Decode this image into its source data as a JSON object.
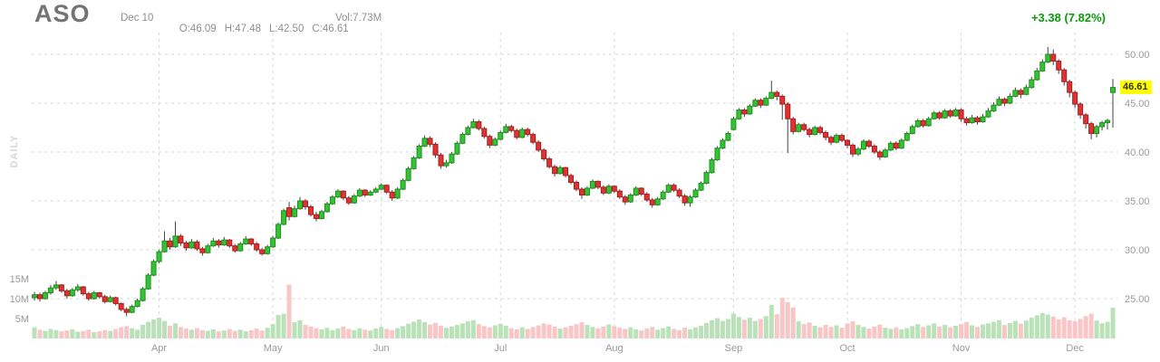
{
  "header": {
    "symbol": "ASO",
    "date": "Dec 10",
    "open": "O:46.09",
    "high": "H:47.48",
    "low": "L:42.50",
    "close": "C:46.61",
    "volume": "Vol:7.73M",
    "change": "+3.38 (7.82%)"
  },
  "colors": {
    "up_fill": "#35c235",
    "up_border": "#1e8e1e",
    "down_fill": "#e03232",
    "down_border": "#a81d1d",
    "wick": "#444444",
    "vol_up": "#b9e2b9",
    "vol_down": "#f8c6c6",
    "grid": "#d6d6d6",
    "axis_text": "#9a9a9a",
    "change_text": "#0d990d",
    "tag_bg": "#ffff00",
    "watermark": "#d8d8d8"
  },
  "chart_data": {
    "type": "candlestick",
    "timeframe": "DAILY",
    "title": "ASO daily candlestick chart with volume",
    "price_axis": {
      "ticks": [
        50,
        45,
        40,
        35,
        30,
        25
      ],
      "labels": [
        "50.00",
        "45.00",
        "40.00",
        "35.00",
        "30.00",
        "25.00"
      ],
      "range": [
        23.2,
        51.5
      ],
      "side": "right",
      "grid": "dashed"
    },
    "volume_axis": {
      "ticks": [
        15,
        10,
        5
      ],
      "labels": [
        "15M",
        "10M",
        "5M"
      ],
      "side": "left"
    },
    "months": [
      {
        "label": "Apr",
        "index": 23
      },
      {
        "label": "May",
        "index": 44
      },
      {
        "label": "Jun",
        "index": 64
      },
      {
        "label": "Jul",
        "index": 86
      },
      {
        "label": "Aug",
        "index": 107
      },
      {
        "label": "Sep",
        "index": 129
      },
      {
        "label": "Oct",
        "index": 150
      },
      {
        "label": "Nov",
        "index": 171
      },
      {
        "label": "Dec",
        "index": 192
      }
    ],
    "last_price": {
      "value": 46.61,
      "label": "46.61"
    },
    "candles_format": [
      "open",
      "high",
      "low",
      "close",
      "volume_millions"
    ],
    "candles": [
      [
        25.1,
        25.7,
        24.8,
        25.4,
        2.8
      ],
      [
        25.4,
        25.6,
        24.7,
        25.0,
        2.2
      ],
      [
        25.0,
        25.8,
        24.9,
        25.6,
        1.9
      ],
      [
        25.6,
        26.4,
        25.4,
        26.1,
        2.4
      ],
      [
        26.1,
        26.8,
        25.9,
        26.4,
        2.1
      ],
      [
        26.4,
        26.5,
        25.6,
        25.8,
        1.8
      ],
      [
        25.8,
        26.0,
        25.0,
        25.3,
        2.0
      ],
      [
        25.3,
        26.1,
        25.2,
        25.9,
        2.3
      ],
      [
        25.9,
        26.5,
        25.7,
        26.2,
        1.7
      ],
      [
        26.2,
        26.3,
        25.3,
        25.5,
        1.9
      ],
      [
        25.5,
        25.7,
        24.8,
        25.0,
        2.2
      ],
      [
        25.0,
        25.8,
        24.9,
        25.6,
        1.6
      ],
      [
        25.6,
        25.7,
        25.0,
        25.2,
        1.8
      ],
      [
        25.2,
        25.4,
        24.5,
        24.7,
        2.1
      ],
      [
        24.7,
        25.3,
        24.6,
        25.1,
        1.9
      ],
      [
        25.1,
        25.2,
        24.3,
        24.5,
        2.4
      ],
      [
        24.5,
        24.6,
        23.7,
        23.9,
        2.8
      ],
      [
        23.9,
        24.1,
        23.2,
        23.6,
        3.1
      ],
      [
        23.6,
        24.4,
        23.5,
        24.2,
        2.6
      ],
      [
        24.2,
        25.0,
        24.1,
        24.8,
        2.2
      ],
      [
        24.8,
        26.2,
        24.7,
        26.0,
        3.4
      ],
      [
        26.0,
        27.6,
        25.9,
        27.4,
        4.2
      ],
      [
        27.4,
        29.0,
        27.3,
        28.8,
        4.8
      ],
      [
        28.8,
        30.0,
        28.6,
        29.8,
        5.2
      ],
      [
        29.8,
        31.9,
        29.7,
        30.9,
        4.4
      ],
      [
        30.9,
        31.2,
        30.0,
        30.3,
        3.2
      ],
      [
        30.3,
        32.9,
        30.2,
        31.4,
        3.8
      ],
      [
        31.4,
        31.6,
        30.4,
        30.7,
        2.9
      ],
      [
        30.7,
        30.9,
        29.9,
        30.2,
        2.5
      ],
      [
        30.2,
        31.1,
        30.1,
        30.8,
        2.2
      ],
      [
        30.8,
        31.0,
        29.9,
        30.1,
        2.6
      ],
      [
        30.1,
        30.3,
        29.4,
        29.7,
        2.1
      ],
      [
        29.7,
        30.6,
        29.6,
        30.4,
        1.9
      ],
      [
        30.4,
        31.2,
        30.3,
        30.9,
        2.3
      ],
      [
        30.9,
        31.1,
        30.2,
        30.5,
        1.8
      ],
      [
        30.5,
        31.3,
        30.4,
        31.0,
        2.0
      ],
      [
        31.0,
        31.1,
        30.2,
        30.4,
        2.4
      ],
      [
        30.4,
        30.6,
        29.7,
        29.9,
        1.9
      ],
      [
        29.9,
        30.8,
        29.8,
        30.6,
        2.2
      ],
      [
        30.6,
        31.4,
        30.5,
        31.1,
        1.8
      ],
      [
        31.1,
        31.2,
        30.4,
        30.6,
        2.1
      ],
      [
        30.6,
        30.8,
        29.8,
        30.0,
        2.5
      ],
      [
        30.0,
        30.2,
        29.4,
        29.6,
        2.0
      ],
      [
        29.6,
        30.5,
        29.5,
        30.3,
        2.7
      ],
      [
        30.3,
        31.4,
        30.2,
        31.2,
        3.6
      ],
      [
        31.2,
        32.8,
        31.1,
        32.6,
        5.9
      ],
      [
        32.6,
        34.2,
        32.5,
        34.0,
        6.2
      ],
      [
        34.3,
        34.9,
        33.0,
        33.4,
        13.5
      ],
      [
        33.4,
        34.5,
        33.3,
        34.2,
        4.1
      ],
      [
        34.2,
        35.4,
        34.1,
        35.0,
        4.6
      ],
      [
        35.0,
        35.2,
        34.1,
        34.4,
        3.4
      ],
      [
        34.4,
        34.6,
        33.4,
        33.6,
        3.0
      ],
      [
        33.6,
        33.9,
        32.9,
        33.2,
        2.6
      ],
      [
        33.2,
        34.1,
        33.1,
        33.9,
        2.3
      ],
      [
        33.9,
        34.9,
        33.8,
        34.7,
        2.7
      ],
      [
        34.7,
        35.6,
        34.6,
        35.4,
        2.1
      ],
      [
        35.4,
        36.2,
        35.3,
        36.0,
        2.5
      ],
      [
        36.0,
        36.1,
        35.1,
        35.3,
        3.0
      ],
      [
        35.3,
        35.5,
        34.6,
        34.8,
        2.4
      ],
      [
        34.8,
        35.7,
        34.7,
        35.5,
        2.1
      ],
      [
        35.5,
        36.3,
        35.4,
        36.1,
        2.6
      ],
      [
        36.1,
        36.2,
        35.4,
        35.6,
        2.2
      ],
      [
        35.6,
        36.1,
        35.5,
        35.9,
        2.0
      ],
      [
        35.9,
        36.4,
        35.8,
        36.2,
        2.5
      ],
      [
        36.2,
        36.8,
        36.1,
        36.6,
        2.9
      ],
      [
        36.6,
        36.7,
        35.7,
        35.9,
        2.4
      ],
      [
        35.9,
        36.1,
        35.0,
        35.3,
        2.1
      ],
      [
        35.3,
        36.4,
        35.2,
        36.2,
        2.6
      ],
      [
        36.2,
        37.3,
        36.1,
        37.1,
        3.1
      ],
      [
        37.1,
        38.5,
        37.0,
        38.3,
        3.7
      ],
      [
        38.3,
        39.6,
        38.2,
        39.4,
        4.2
      ],
      [
        39.4,
        40.8,
        39.3,
        40.6,
        4.8
      ],
      [
        40.6,
        41.7,
        40.5,
        41.4,
        4.1
      ],
      [
        41.4,
        41.6,
        40.5,
        40.8,
        3.5
      ],
      [
        40.8,
        41.0,
        39.4,
        39.7,
        3.9
      ],
      [
        39.7,
        39.9,
        38.3,
        38.6,
        3.2
      ],
      [
        38.6,
        39.2,
        38.4,
        38.9,
        2.7
      ],
      [
        38.9,
        40.0,
        38.8,
        39.8,
        3.0
      ],
      [
        39.8,
        41.1,
        39.7,
        40.9,
        3.4
      ],
      [
        40.9,
        42.0,
        40.8,
        41.8,
        3.8
      ],
      [
        41.8,
        42.7,
        41.7,
        42.5,
        4.3
      ],
      [
        42.5,
        43.4,
        42.4,
        43.1,
        4.6
      ],
      [
        43.1,
        43.3,
        42.2,
        42.4,
        3.6
      ],
      [
        42.4,
        42.6,
        41.4,
        41.6,
        3.1
      ],
      [
        41.6,
        41.8,
        40.4,
        40.7,
        2.8
      ],
      [
        40.7,
        41.5,
        40.6,
        41.3,
        3.3
      ],
      [
        41.3,
        42.2,
        41.2,
        42.0,
        3.7
      ],
      [
        42.0,
        42.9,
        41.9,
        42.6,
        3.2
      ],
      [
        42.6,
        42.8,
        42.0,
        42.2,
        2.6
      ],
      [
        42.2,
        42.4,
        41.3,
        41.5,
        2.3
      ],
      [
        41.5,
        42.5,
        41.4,
        42.3,
        2.8
      ],
      [
        42.3,
        42.5,
        41.6,
        41.8,
        2.4
      ],
      [
        41.8,
        42.0,
        40.8,
        41.0,
        2.9
      ],
      [
        41.0,
        41.2,
        40.0,
        40.2,
        3.3
      ],
      [
        40.2,
        40.4,
        39.1,
        39.3,
        3.8
      ],
      [
        39.3,
        39.5,
        38.3,
        38.5,
        3.5
      ],
      [
        38.5,
        38.7,
        37.5,
        37.8,
        3.0
      ],
      [
        37.8,
        38.6,
        37.7,
        38.4,
        2.5
      ],
      [
        38.4,
        38.5,
        37.4,
        37.6,
        2.8
      ],
      [
        37.6,
        37.8,
        36.7,
        36.9,
        3.2
      ],
      [
        36.9,
        37.1,
        36.0,
        36.2,
        3.6
      ],
      [
        36.2,
        36.4,
        35.2,
        35.6,
        4.1
      ],
      [
        35.6,
        36.5,
        35.5,
        36.3,
        3.4
      ],
      [
        36.3,
        37.2,
        36.2,
        37.0,
        2.9
      ],
      [
        37.0,
        37.1,
        36.2,
        36.4,
        2.6
      ],
      [
        36.4,
        36.6,
        35.6,
        35.8,
        3.0
      ],
      [
        35.8,
        36.7,
        35.7,
        36.5,
        3.5
      ],
      [
        36.5,
        36.6,
        35.8,
        36.0,
        3.1
      ],
      [
        36.0,
        36.2,
        35.2,
        35.4,
        2.7
      ],
      [
        35.4,
        35.6,
        34.6,
        34.9,
        2.4
      ],
      [
        34.9,
        35.8,
        34.8,
        35.6,
        2.8
      ],
      [
        35.6,
        36.5,
        35.5,
        36.3,
        2.3
      ],
      [
        36.3,
        36.4,
        35.5,
        35.7,
        2.0
      ],
      [
        35.7,
        35.9,
        34.9,
        35.1,
        2.5
      ],
      [
        35.1,
        35.3,
        34.3,
        34.6,
        2.9
      ],
      [
        34.6,
        35.4,
        34.5,
        35.2,
        2.2
      ],
      [
        35.2,
        36.1,
        35.1,
        35.9,
        2.6
      ],
      [
        35.9,
        36.8,
        35.8,
        36.6,
        3.0
      ],
      [
        36.6,
        36.8,
        35.9,
        36.1,
        2.4
      ],
      [
        36.1,
        36.3,
        35.3,
        35.5,
        2.1
      ],
      [
        35.5,
        35.7,
        34.5,
        34.8,
        2.7
      ],
      [
        34.8,
        35.6,
        34.4,
        35.4,
        2.3
      ],
      [
        35.4,
        36.3,
        35.3,
        36.1,
        2.8
      ],
      [
        36.1,
        37.0,
        36.0,
        36.8,
        3.2
      ],
      [
        36.8,
        38.1,
        36.7,
        37.9,
        3.9
      ],
      [
        37.9,
        39.4,
        37.8,
        39.2,
        4.6
      ],
      [
        39.2,
        40.6,
        39.1,
        40.4,
        5.1
      ],
      [
        40.4,
        41.4,
        40.3,
        41.2,
        4.4
      ],
      [
        41.2,
        42.1,
        41.1,
        41.9,
        4.9
      ],
      [
        42.3,
        43.6,
        42.2,
        43.4,
        6.3
      ],
      [
        43.4,
        44.5,
        43.3,
        44.3,
        5.4
      ],
      [
        44.3,
        44.5,
        43.6,
        43.9,
        4.7
      ],
      [
        43.9,
        44.9,
        43.8,
        44.7,
        5.2
      ],
      [
        44.7,
        45.5,
        44.6,
        45.3,
        4.4
      ],
      [
        45.3,
        45.5,
        44.5,
        44.8,
        4.9
      ],
      [
        44.8,
        45.7,
        44.7,
        45.5,
        5.6
      ],
      [
        45.5,
        47.3,
        45.4,
        46.1,
        8.4
      ],
      [
        46.1,
        46.3,
        45.3,
        45.7,
        6.1
      ],
      [
        45.7,
        45.9,
        43.3,
        44.9,
        10.2
      ],
      [
        44.9,
        45.1,
        39.9,
        43.4,
        9.1
      ],
      [
        43.4,
        43.6,
        41.8,
        42.1,
        7.8
      ],
      [
        42.1,
        43.0,
        42.0,
        42.8,
        4.3
      ],
      [
        42.8,
        43.0,
        42.1,
        42.3,
        3.6
      ],
      [
        42.3,
        42.5,
        41.5,
        41.8,
        4.0
      ],
      [
        41.8,
        42.7,
        41.7,
        42.5,
        3.2
      ],
      [
        42.5,
        42.7,
        41.8,
        42.0,
        2.8
      ],
      [
        42.0,
        42.2,
        41.2,
        41.5,
        3.4
      ],
      [
        41.5,
        41.7,
        40.7,
        41.0,
        2.9
      ],
      [
        41.0,
        41.9,
        40.9,
        41.7,
        3.3
      ],
      [
        41.7,
        41.9,
        41.0,
        41.2,
        2.7
      ],
      [
        41.2,
        41.3,
        40.4,
        40.7,
        3.8
      ],
      [
        40.7,
        40.9,
        39.5,
        39.8,
        4.3
      ],
      [
        39.8,
        40.5,
        39.6,
        40.3,
        3.4
      ],
      [
        40.3,
        41.3,
        40.2,
        41.1,
        2.9
      ],
      [
        41.1,
        41.3,
        40.4,
        40.6,
        2.5
      ],
      [
        40.6,
        40.8,
        39.8,
        40.0,
        3.0
      ],
      [
        40.0,
        40.2,
        39.2,
        39.5,
        3.5
      ],
      [
        39.5,
        40.4,
        39.4,
        40.2,
        2.7
      ],
      [
        40.2,
        41.1,
        40.1,
        40.9,
        2.4
      ],
      [
        40.9,
        41.1,
        40.2,
        40.4,
        2.8
      ],
      [
        40.4,
        41.4,
        40.3,
        41.2,
        2.3
      ],
      [
        41.2,
        42.1,
        41.1,
        41.9,
        2.6
      ],
      [
        41.9,
        42.8,
        41.8,
        42.6,
        3.1
      ],
      [
        42.6,
        43.4,
        42.5,
        43.2,
        3.6
      ],
      [
        43.2,
        43.4,
        42.5,
        42.7,
        2.9
      ],
      [
        42.7,
        43.6,
        42.6,
        43.4,
        3.3
      ],
      [
        43.4,
        44.2,
        43.3,
        44.0,
        3.8
      ],
      [
        44.0,
        44.2,
        43.3,
        43.5,
        3.0
      ],
      [
        43.5,
        44.4,
        43.4,
        44.2,
        3.4
      ],
      [
        44.2,
        44.4,
        43.5,
        43.7,
        2.8
      ],
      [
        43.7,
        44.5,
        43.6,
        44.3,
        3.2
      ],
      [
        44.3,
        44.5,
        43.1,
        43.4,
        3.6
      ],
      [
        43.4,
        43.6,
        42.7,
        43.0,
        4.1
      ],
      [
        43.0,
        43.8,
        42.9,
        43.5,
        3.3
      ],
      [
        43.5,
        43.7,
        42.8,
        43.1,
        2.9
      ],
      [
        43.1,
        43.9,
        43.0,
        43.6,
        3.5
      ],
      [
        43.6,
        44.5,
        43.5,
        44.2,
        3.8
      ],
      [
        44.2,
        45.1,
        44.1,
        44.8,
        4.2
      ],
      [
        44.8,
        45.7,
        44.7,
        45.4,
        4.6
      ],
      [
        45.4,
        45.6,
        44.7,
        45.0,
        3.4
      ],
      [
        45.0,
        46.0,
        44.9,
        45.7,
        3.9
      ],
      [
        45.7,
        46.6,
        45.6,
        46.3,
        4.4
      ],
      [
        46.3,
        46.5,
        45.5,
        45.9,
        3.7
      ],
      [
        45.9,
        46.9,
        45.8,
        46.6,
        4.5
      ],
      [
        46.6,
        47.7,
        46.5,
        47.4,
        5.2
      ],
      [
        47.4,
        48.6,
        47.3,
        48.3,
        5.8
      ],
      [
        48.3,
        49.5,
        48.2,
        49.2,
        6.4
      ],
      [
        49.2,
        50.75,
        49.1,
        50.0,
        6.0
      ],
      [
        50.0,
        50.5,
        48.9,
        49.3,
        5.5
      ],
      [
        49.3,
        49.5,
        48.0,
        48.4,
        4.8
      ],
      [
        48.4,
        48.6,
        46.8,
        47.2,
        5.3
      ],
      [
        47.2,
        47.4,
        45.6,
        46.1,
        4.6
      ],
      [
        46.1,
        46.3,
        44.5,
        44.9,
        4.4
      ],
      [
        44.9,
        45.1,
        43.4,
        43.8,
        4.9
      ],
      [
        43.8,
        44.0,
        42.4,
        42.9,
        5.6
      ],
      [
        42.9,
        43.1,
        41.3,
        41.9,
        6.2
      ],
      [
        41.9,
        42.8,
        41.5,
        42.6,
        4.5
      ],
      [
        42.6,
        43.2,
        42.2,
        43.0,
        3.8
      ],
      [
        43.0,
        43.4,
        42.3,
        43.23,
        4.2
      ],
      [
        46.09,
        47.48,
        42.5,
        46.61,
        7.73
      ]
    ]
  }
}
